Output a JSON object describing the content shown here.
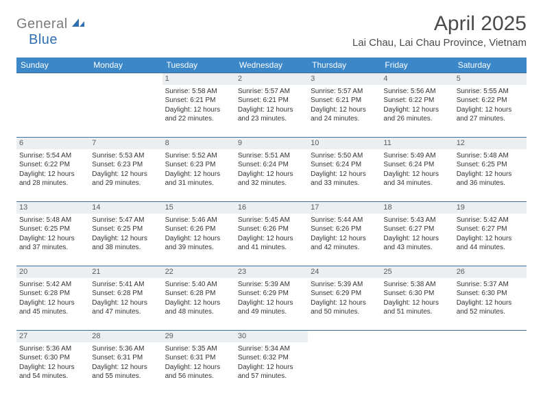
{
  "brand": {
    "part1": "General",
    "part2": "Blue"
  },
  "title": "April 2025",
  "location": "Lai Chau, Lai Chau Province, Vietnam",
  "colors": {
    "header_bg": "#3b87c8",
    "header_text": "#ffffff",
    "row_border": "#3b6fa0",
    "daynum_bg": "#eceff2",
    "logo_gray": "#7a7a7a",
    "logo_blue": "#2f6fb0"
  },
  "weekdays": [
    "Sunday",
    "Monday",
    "Tuesday",
    "Wednesday",
    "Thursday",
    "Friday",
    "Saturday"
  ],
  "weeks": [
    [
      null,
      null,
      {
        "n": "1",
        "sr": "5:58 AM",
        "ss": "6:21 PM",
        "dl": "12 hours and 22 minutes."
      },
      {
        "n": "2",
        "sr": "5:57 AM",
        "ss": "6:21 PM",
        "dl": "12 hours and 23 minutes."
      },
      {
        "n": "3",
        "sr": "5:57 AM",
        "ss": "6:21 PM",
        "dl": "12 hours and 24 minutes."
      },
      {
        "n": "4",
        "sr": "5:56 AM",
        "ss": "6:22 PM",
        "dl": "12 hours and 26 minutes."
      },
      {
        "n": "5",
        "sr": "5:55 AM",
        "ss": "6:22 PM",
        "dl": "12 hours and 27 minutes."
      }
    ],
    [
      {
        "n": "6",
        "sr": "5:54 AM",
        "ss": "6:22 PM",
        "dl": "12 hours and 28 minutes."
      },
      {
        "n": "7",
        "sr": "5:53 AM",
        "ss": "6:23 PM",
        "dl": "12 hours and 29 minutes."
      },
      {
        "n": "8",
        "sr": "5:52 AM",
        "ss": "6:23 PM",
        "dl": "12 hours and 31 minutes."
      },
      {
        "n": "9",
        "sr": "5:51 AM",
        "ss": "6:24 PM",
        "dl": "12 hours and 32 minutes."
      },
      {
        "n": "10",
        "sr": "5:50 AM",
        "ss": "6:24 PM",
        "dl": "12 hours and 33 minutes."
      },
      {
        "n": "11",
        "sr": "5:49 AM",
        "ss": "6:24 PM",
        "dl": "12 hours and 34 minutes."
      },
      {
        "n": "12",
        "sr": "5:48 AM",
        "ss": "6:25 PM",
        "dl": "12 hours and 36 minutes."
      }
    ],
    [
      {
        "n": "13",
        "sr": "5:48 AM",
        "ss": "6:25 PM",
        "dl": "12 hours and 37 minutes."
      },
      {
        "n": "14",
        "sr": "5:47 AM",
        "ss": "6:25 PM",
        "dl": "12 hours and 38 minutes."
      },
      {
        "n": "15",
        "sr": "5:46 AM",
        "ss": "6:26 PM",
        "dl": "12 hours and 39 minutes."
      },
      {
        "n": "16",
        "sr": "5:45 AM",
        "ss": "6:26 PM",
        "dl": "12 hours and 41 minutes."
      },
      {
        "n": "17",
        "sr": "5:44 AM",
        "ss": "6:26 PM",
        "dl": "12 hours and 42 minutes."
      },
      {
        "n": "18",
        "sr": "5:43 AM",
        "ss": "6:27 PM",
        "dl": "12 hours and 43 minutes."
      },
      {
        "n": "19",
        "sr": "5:42 AM",
        "ss": "6:27 PM",
        "dl": "12 hours and 44 minutes."
      }
    ],
    [
      {
        "n": "20",
        "sr": "5:42 AM",
        "ss": "6:28 PM",
        "dl": "12 hours and 45 minutes."
      },
      {
        "n": "21",
        "sr": "5:41 AM",
        "ss": "6:28 PM",
        "dl": "12 hours and 47 minutes."
      },
      {
        "n": "22",
        "sr": "5:40 AM",
        "ss": "6:28 PM",
        "dl": "12 hours and 48 minutes."
      },
      {
        "n": "23",
        "sr": "5:39 AM",
        "ss": "6:29 PM",
        "dl": "12 hours and 49 minutes."
      },
      {
        "n": "24",
        "sr": "5:39 AM",
        "ss": "6:29 PM",
        "dl": "12 hours and 50 minutes."
      },
      {
        "n": "25",
        "sr": "5:38 AM",
        "ss": "6:30 PM",
        "dl": "12 hours and 51 minutes."
      },
      {
        "n": "26",
        "sr": "5:37 AM",
        "ss": "6:30 PM",
        "dl": "12 hours and 52 minutes."
      }
    ],
    [
      {
        "n": "27",
        "sr": "5:36 AM",
        "ss": "6:30 PM",
        "dl": "12 hours and 54 minutes."
      },
      {
        "n": "28",
        "sr": "5:36 AM",
        "ss": "6:31 PM",
        "dl": "12 hours and 55 minutes."
      },
      {
        "n": "29",
        "sr": "5:35 AM",
        "ss": "6:31 PM",
        "dl": "12 hours and 56 minutes."
      },
      {
        "n": "30",
        "sr": "5:34 AM",
        "ss": "6:32 PM",
        "dl": "12 hours and 57 minutes."
      },
      null,
      null,
      null
    ]
  ],
  "labels": {
    "sunrise": "Sunrise:",
    "sunset": "Sunset:",
    "daylight": "Daylight:"
  }
}
